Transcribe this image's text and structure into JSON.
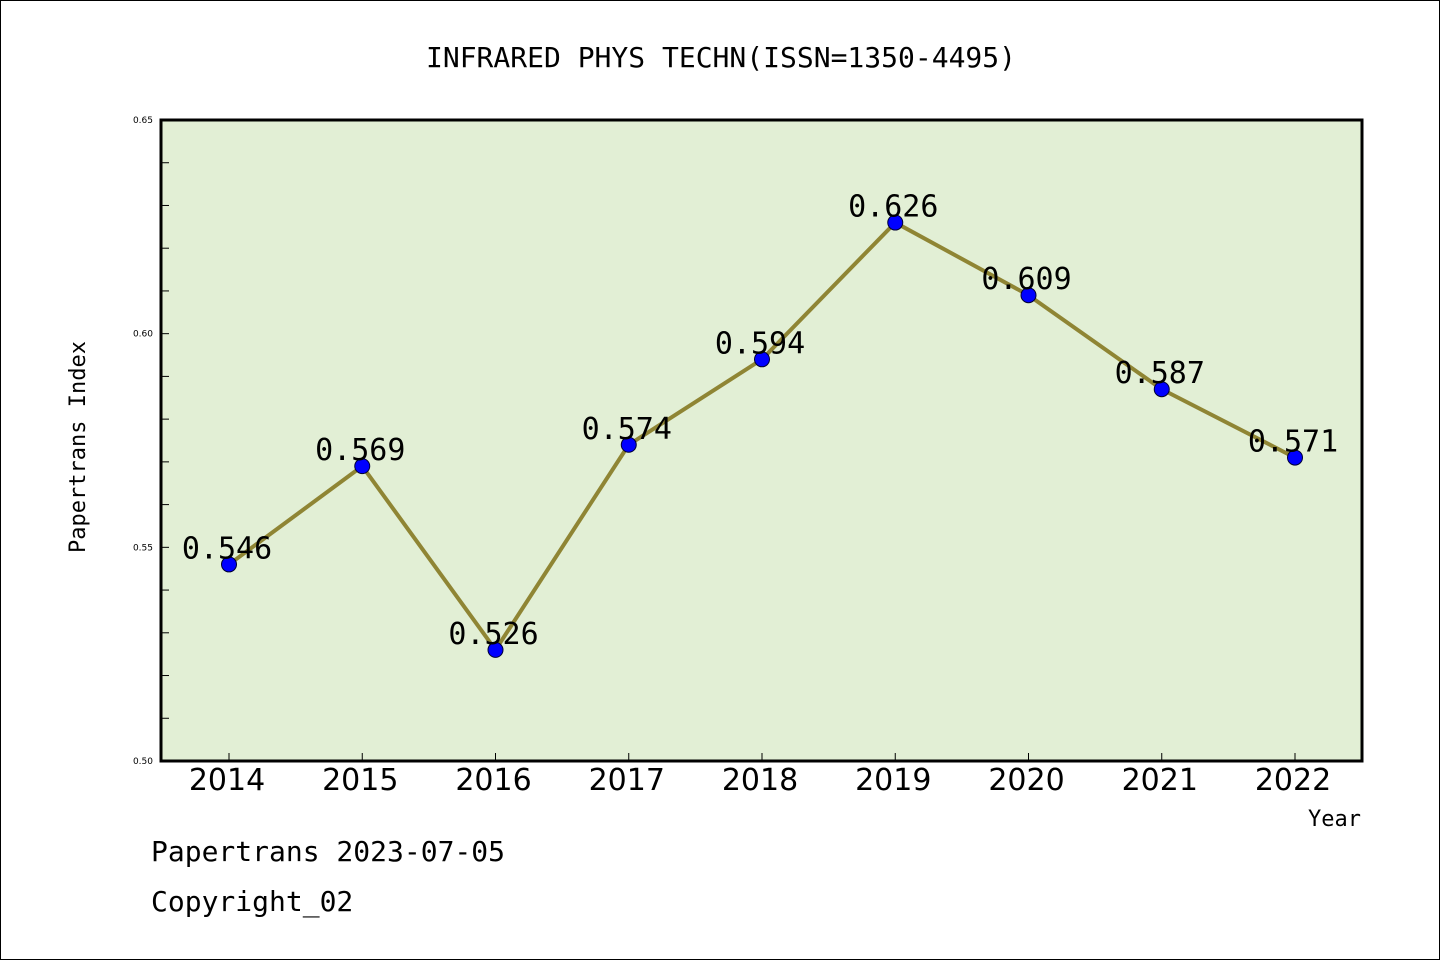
{
  "chart_data": {
    "type": "line",
    "title": "INFRARED PHYS TECHN(ISSN=1350-4495)",
    "xlabel": "Year",
    "ylabel": "Papertrans Index",
    "categories": [
      "2014",
      "2015",
      "2016",
      "2017",
      "2018",
      "2019",
      "2020",
      "2021",
      "2022"
    ],
    "values": [
      0.546,
      0.569,
      0.526,
      0.574,
      0.594,
      0.626,
      0.609,
      0.587,
      0.571
    ],
    "data_labels": [
      "0.546",
      "0.569",
      "0.526",
      "0.574",
      "0.594",
      "0.626",
      "0.609",
      "0.587",
      "0.571"
    ],
    "ylim": [
      0.5,
      0.65
    ],
    "yticks": [
      "0.50",
      "0.55",
      "0.60",
      "0.65"
    ],
    "grid": false,
    "colors": {
      "plot_background": "#e2efd5",
      "line": "#8f8534",
      "marker": "#0000ff"
    }
  },
  "footer": {
    "line1": "Papertrans 2023-07-05",
    "line2": "Copyright_02"
  }
}
